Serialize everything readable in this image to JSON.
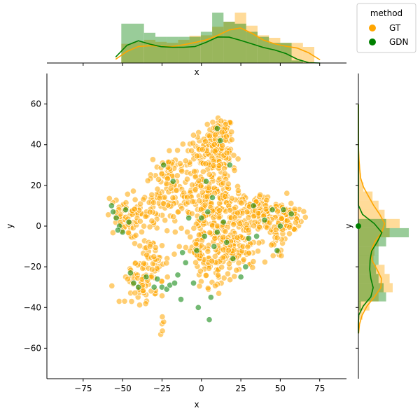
{
  "chart_data": {
    "type": "scatter",
    "title": "",
    "xlabel": "x",
    "ylabel": "y",
    "xlim": [
      -98,
      92
    ],
    "ylim": [
      -75,
      75
    ],
    "xticks": [
      -75,
      -50,
      -25,
      0,
      25,
      50,
      75
    ],
    "yticks": [
      -60,
      -40,
      -20,
      0,
      20,
      40,
      60
    ],
    "xtick_labels": [
      "−75",
      "−50",
      "−25",
      "0",
      "25",
      "50",
      "75"
    ],
    "ytick_labels": [
      "−60",
      "−40",
      "−20",
      "0",
      "20",
      "40",
      "60"
    ],
    "marginal_labels": {
      "top_x": "x",
      "right_y": "y"
    },
    "legend": {
      "title": "method",
      "placement": "top-right",
      "entries": [
        "GT",
        "GDN"
      ]
    },
    "series": [
      {
        "name": "GT",
        "color": "#ffa500",
        "clusters": [
          {
            "cx": 12,
            "cy": 45,
            "sx": 4,
            "sy": 4,
            "n": 70
          },
          {
            "cx": 2,
            "cy": 36,
            "sx": 6,
            "sy": 4,
            "n": 60
          },
          {
            "cx": 12,
            "cy": 35,
            "sx": 5,
            "sy": 5,
            "n": 60
          },
          {
            "cx": -20,
            "cy": 28,
            "sx": 6,
            "sy": 4,
            "n": 40
          },
          {
            "cx": -20,
            "cy": 16,
            "sx": 8,
            "sy": 5,
            "n": 70
          },
          {
            "cx": 5,
            "cy": 18,
            "sx": 10,
            "sy": 6,
            "n": 90
          },
          {
            "cx": 10,
            "cy": 4,
            "sx": 12,
            "sy": 7,
            "n": 180
          },
          {
            "cx": 38,
            "cy": 6,
            "sx": 8,
            "sy": 5,
            "n": 110
          },
          {
            "cx": 54,
            "cy": 4,
            "sx": 5,
            "sy": 4,
            "n": 70
          },
          {
            "cx": -50,
            "cy": 4,
            "sx": 5,
            "sy": 5,
            "n": 50
          },
          {
            "cx": -36,
            "cy": 6,
            "sx": 4,
            "sy": 4,
            "n": 30
          },
          {
            "cx": 22,
            "cy": -12,
            "sx": 8,
            "sy": 6,
            "n": 90
          },
          {
            "cx": 8,
            "cy": -20,
            "sx": 6,
            "sy": 5,
            "n": 50
          },
          {
            "cx": -2,
            "cy": -12,
            "sx": 4,
            "sy": 5,
            "n": 30
          },
          {
            "cx": -32,
            "cy": -18,
            "sx": 6,
            "sy": 6,
            "n": 60
          },
          {
            "cx": -38,
            "cy": -30,
            "sx": 5,
            "sy": 4,
            "n": 40
          },
          {
            "cx": -24,
            "cy": -49,
            "sx": 2,
            "sy": 2,
            "n": 5
          },
          {
            "cx": 48,
            "cy": -8,
            "sx": 3,
            "sy": 4,
            "n": 20
          }
        ],
        "top_hist": [
          0,
          0.38,
          0.42,
          0.46,
          0.42,
          0.4,
          0.46,
          0.54,
          0.55,
          0.72,
          0.82,
          1.0,
          0.74,
          0.55,
          0.5,
          0.4,
          0.4,
          0.32,
          0
        ],
        "right_hist": [
          0,
          0,
          0,
          0,
          0,
          0,
          0.02,
          0.03,
          0.05,
          0.1,
          0.28,
          0.4,
          0.52,
          0.82,
          0.62,
          0.4,
          0.32,
          0.3,
          0.52,
          0.62,
          0.68,
          0.4,
          0.22,
          0.08,
          0.02,
          0
        ]
      },
      {
        "name": "GDN",
        "color": "#008000",
        "points": [
          [
            -57,
            10
          ],
          [
            -56,
            7
          ],
          [
            -54,
            4
          ],
          [
            -52,
            0
          ],
          [
            -50,
            -3
          ],
          [
            -48,
            8
          ],
          [
            -46,
            2
          ],
          [
            -53,
            -2
          ],
          [
            -45,
            -23
          ],
          [
            -43,
            -28
          ],
          [
            -40,
            -30
          ],
          [
            -35,
            -25
          ],
          [
            -30,
            -30
          ],
          [
            -28,
            -26
          ],
          [
            -25,
            -30
          ],
          [
            -22,
            -31
          ],
          [
            -20,
            -29
          ],
          [
            -17,
            -28
          ],
          [
            -24,
            30
          ],
          [
            -10,
            -18
          ],
          [
            -12,
            -13
          ],
          [
            -15,
            -24
          ],
          [
            -5,
            -28
          ],
          [
            -3,
            -12
          ],
          [
            -2,
            -40
          ],
          [
            5,
            -46
          ],
          [
            7,
            14
          ],
          [
            3,
            22
          ],
          [
            0,
            4
          ],
          [
            4,
            7
          ],
          [
            2,
            -5
          ],
          [
            8,
            -10
          ],
          [
            10,
            -3
          ],
          [
            14,
            2
          ],
          [
            16,
            -8
          ],
          [
            20,
            -16
          ],
          [
            25,
            -25
          ],
          [
            28,
            -20
          ],
          [
            30,
            -6
          ],
          [
            35,
            -5
          ],
          [
            40,
            3
          ],
          [
            45,
            8
          ],
          [
            48,
            -12
          ],
          [
            50,
            0
          ],
          [
            52,
            8
          ],
          [
            57,
            6
          ],
          [
            12,
            42
          ],
          [
            10,
            48
          ],
          [
            18,
            30
          ],
          [
            6,
            -35
          ],
          [
            -13,
            -36
          ],
          [
            -8,
            4
          ],
          [
            -18,
            22
          ],
          [
            33,
            10
          ]
        ],
        "top_hist": [
          0,
          0.78,
          0.78,
          0.6,
          0.52,
          0.52,
          0.52,
          0.52,
          0.62,
          1.0,
          0.82,
          0.78,
          0.62,
          0.52,
          0.4,
          0.4,
          0.05,
          0,
          0
        ],
        "right_hist": [
          0,
          0,
          0,
          0,
          0,
          0,
          0,
          0,
          0,
          0,
          0,
          0,
          0,
          0.55,
          1.0,
          0.55,
          0.4,
          0.4,
          0.35,
          0.4,
          0.5,
          0.55,
          0.05,
          0,
          0,
          0
        ]
      }
    ]
  }
}
